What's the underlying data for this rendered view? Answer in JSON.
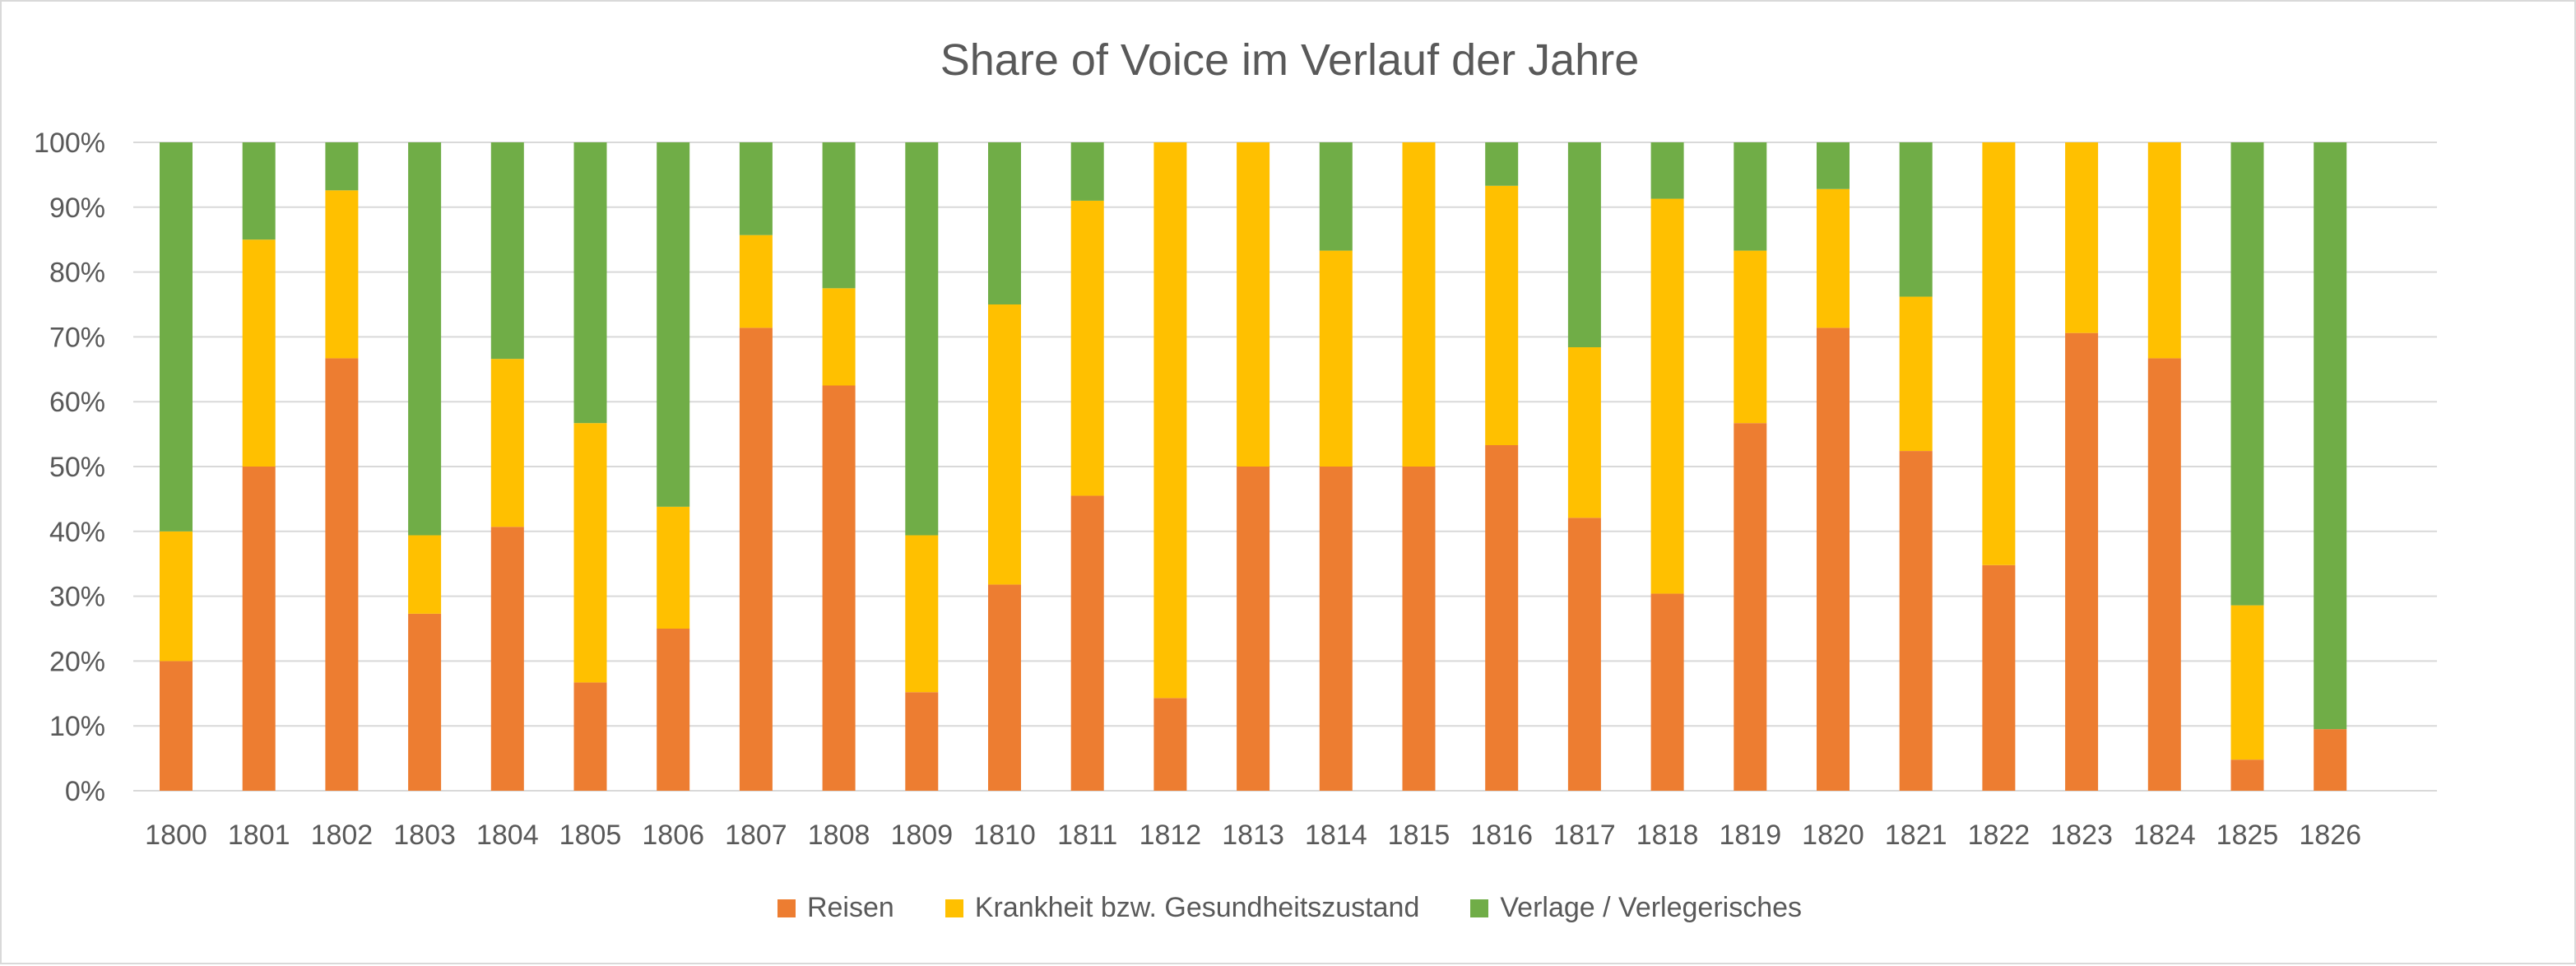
{
  "colors": {
    "reisen": "#ed7d31",
    "krankheit": "#ffc000",
    "verlage": "#70ad47",
    "grid": "#d9d9d9",
    "text": "#595959"
  },
  "chart_data": {
    "type": "bar",
    "stacked": true,
    "percent_stacked": true,
    "title": "Share of Voice im Verlauf der Jahre",
    "xlabel": "",
    "ylabel": "",
    "ylim": [
      0,
      100
    ],
    "y_ticks": [
      "0%",
      "10%",
      "20%",
      "30%",
      "40%",
      "50%",
      "60%",
      "70%",
      "80%",
      "90%",
      "100%"
    ],
    "grid": true,
    "legend_position": "bottom",
    "categories": [
      "1800",
      "1801",
      "1802",
      "1803",
      "1804",
      "1805",
      "1806",
      "1807",
      "1808",
      "1809",
      "1810",
      "1811",
      "1812",
      "1813",
      "1814",
      "1815",
      "1816",
      "1817",
      "1818",
      "1819",
      "1820",
      "1821",
      "1822",
      "1823",
      "1824",
      "1825",
      "1826"
    ],
    "series": [
      {
        "name": "Reisen",
        "color_key": "reisen",
        "values": [
          20,
          50,
          66.7,
          27.3,
          40.7,
          16.7,
          25,
          71.4,
          62.5,
          15.2,
          31.8,
          45.5,
          14.3,
          50,
          50,
          50,
          53.3,
          42.1,
          30.4,
          56.7,
          71.4,
          52.4,
          34.8,
          70.6,
          66.7,
          4.8,
          9.5
        ]
      },
      {
        "name": "Krankheit bzw. Gesundheitszustand",
        "color_key": "krankheit",
        "values": [
          20,
          35,
          25.9,
          12.1,
          25.9,
          40,
          18.8,
          14.3,
          15,
          24.2,
          43.2,
          45.5,
          85.7,
          50,
          33.3,
          50,
          40,
          26.3,
          60.9,
          26.6,
          21.4,
          23.8,
          65.2,
          29.4,
          33.3,
          23.8,
          0
        ]
      },
      {
        "name": "Verlage / Verlegerisches",
        "color_key": "verlage",
        "values": [
          60,
          15,
          7.4,
          60.6,
          33.4,
          43.3,
          56.2,
          14.3,
          22.5,
          60.6,
          25,
          9,
          0,
          0,
          16.7,
          0,
          6.7,
          31.6,
          8.7,
          16.7,
          7.2,
          23.8,
          0,
          0,
          0,
          71.4,
          90.5
        ]
      }
    ]
  }
}
